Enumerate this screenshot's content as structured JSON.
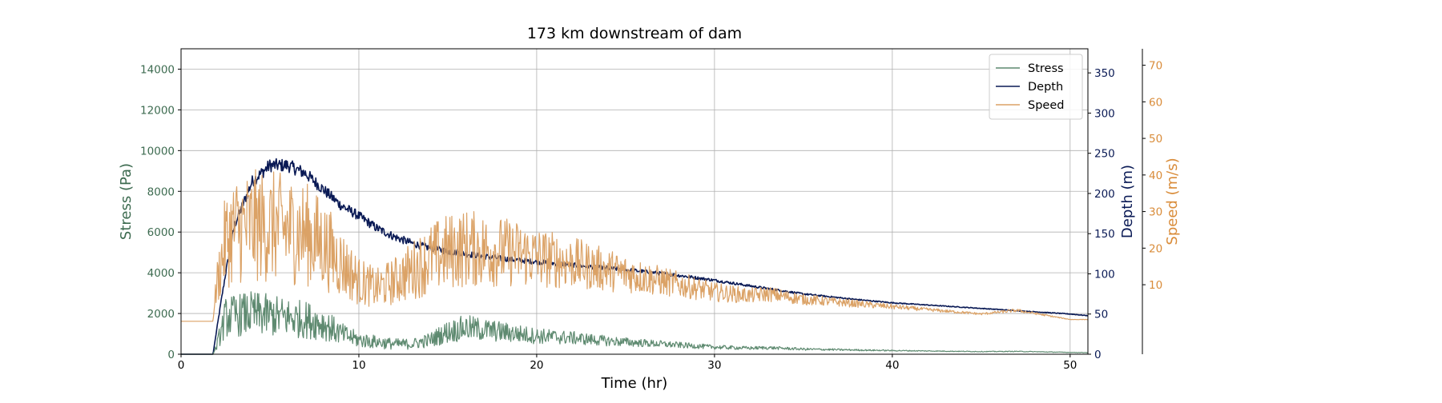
{
  "chart_data": {
    "type": "line",
    "title": "173 km downstream of dam",
    "xlabel": "Time (hr)",
    "xlim": [
      0,
      51
    ],
    "xticks": [
      0,
      10,
      20,
      30,
      40,
      50
    ],
    "grid": true,
    "legend_placement": "top-right",
    "axes": [
      {
        "id": "stress",
        "label": "Stress (Pa)",
        "side": "left",
        "ylim": [
          0,
          15000
        ],
        "ticks": [
          0,
          2000,
          4000,
          6000,
          8000,
          10000,
          12000,
          14000
        ],
        "color": "#3d6b50"
      },
      {
        "id": "depth",
        "label": "Depth (m)",
        "side": "right",
        "ylim": [
          0,
          380
        ],
        "ticks": [
          0,
          50,
          100,
          150,
          200,
          250,
          300,
          350
        ],
        "color": "#0a1a55"
      },
      {
        "id": "speed",
        "label": "Speed (m/s)",
        "side": "right-outer",
        "ylim": [
          -9,
          74.5
        ],
        "ticks": [
          10,
          20,
          30,
          40,
          50,
          60,
          70
        ],
        "color": "#d98c3a"
      }
    ],
    "series": [
      {
        "name": "Stress",
        "axis": "stress",
        "color": "#5e8a70",
        "noise": 0.55,
        "x": [
          0,
          1.8,
          2.0,
          2.5,
          3,
          4,
          5,
          6,
          7,
          8,
          9,
          10,
          11,
          12,
          13,
          14,
          15,
          16,
          17,
          18,
          19,
          20,
          22,
          24,
          26,
          28,
          30,
          32,
          33,
          35,
          40,
          45,
          47,
          50,
          51
        ],
        "y": [
          0,
          0,
          400,
          1800,
          1900,
          2000,
          1900,
          1800,
          1700,
          1500,
          1000,
          700,
          600,
          500,
          500,
          700,
          1100,
          1300,
          1200,
          1100,
          1000,
          900,
          800,
          650,
          550,
          450,
          350,
          300,
          320,
          250,
          180,
          130,
          140,
          90,
          80
        ]
      },
      {
        "name": "Depth",
        "axis": "depth",
        "color": "#0a1a55",
        "noise": 0.035,
        "x": [
          0,
          1.8,
          2.0,
          2.5,
          3,
          4,
          5,
          6,
          7,
          8,
          9,
          10,
          11,
          12,
          13,
          14,
          15,
          16,
          17,
          18,
          19,
          20,
          22,
          24,
          26,
          28,
          30,
          32,
          35,
          38,
          40,
          45,
          50,
          51
        ],
        "y": [
          0,
          0,
          30,
          100,
          160,
          215,
          235,
          235,
          225,
          205,
          185,
          172,
          157,
          146,
          138,
          132,
          128,
          125,
          122,
          119,
          117,
          115,
          111,
          107,
          103,
          98,
          92,
          85,
          75,
          68,
          64,
          57,
          50,
          48
        ]
      },
      {
        "name": "Speed",
        "axis": "speed",
        "color": "#dba266",
        "noise": 0.6,
        "x": [
          0,
          1.8,
          2.0,
          2.5,
          3,
          4,
          5,
          6,
          7,
          8,
          9,
          10,
          11,
          12,
          13,
          14,
          15,
          16,
          17,
          18,
          19,
          20,
          22,
          24,
          26,
          28,
          30,
          32,
          33,
          35,
          40,
          45,
          47,
          50,
          51
        ],
        "y": [
          0,
          0,
          10,
          22,
          25,
          26,
          26,
          25,
          24,
          21,
          16,
          11,
          9,
          11,
          14,
          17,
          19,
          20,
          19.5,
          19,
          18.5,
          17.5,
          16,
          14,
          12,
          10,
          8,
          7,
          7.5,
          6,
          4,
          2,
          3,
          0.5,
          0.5
        ]
      }
    ]
  }
}
